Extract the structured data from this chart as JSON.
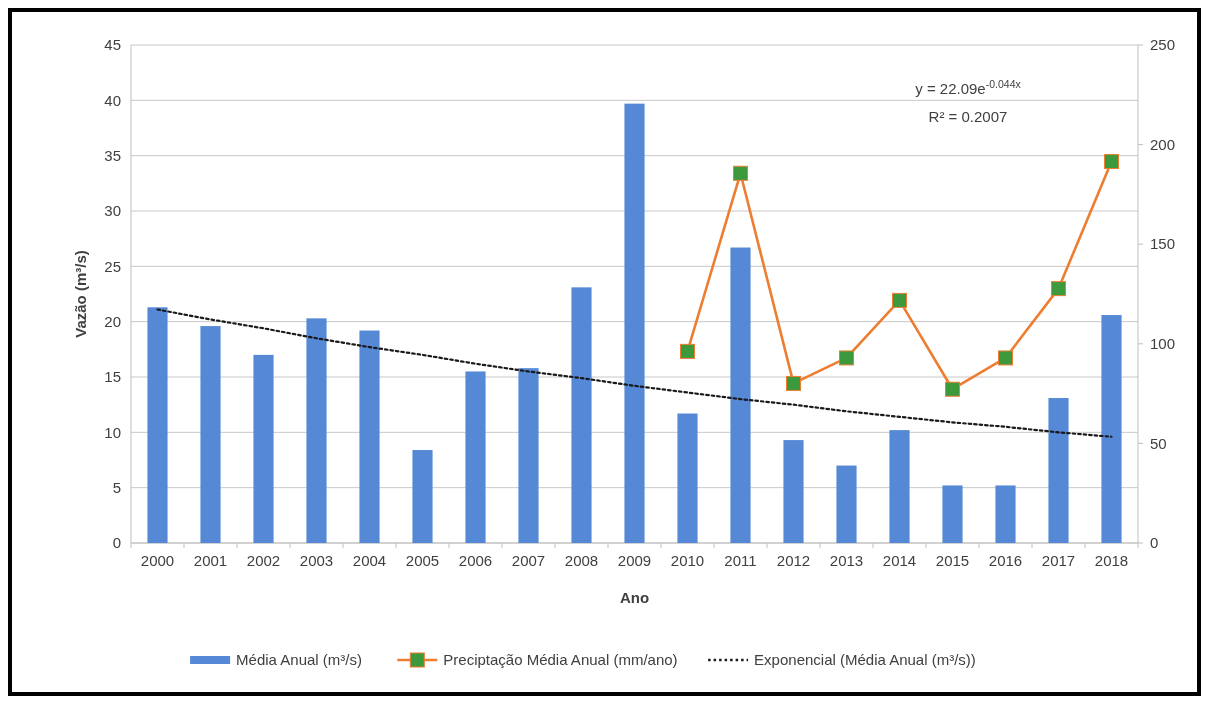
{
  "chart_data": {
    "type": "bar",
    "xlabel": "Ano",
    "ylabel": "Vazão (m³/s)",
    "categories": [
      "2000",
      "2001",
      "2002",
      "2003",
      "2004",
      "2005",
      "2006",
      "2007",
      "2008",
      "2009",
      "2010",
      "2011",
      "2012",
      "2013",
      "2014",
      "2015",
      "2016",
      "2017",
      "2018"
    ],
    "ylim": [
      0,
      45
    ],
    "yticks": [
      0,
      5,
      10,
      15,
      20,
      25,
      30,
      35,
      40,
      45
    ],
    "y2lim": [
      0,
      250
    ],
    "y2ticks": [
      0,
      50,
      100,
      150,
      200,
      250
    ],
    "grid": "y",
    "legend": "bottom",
    "annotations": [
      "y = 22.09e$^{-0.044x}$",
      "R² = 0.2007"
    ],
    "series": [
      {
        "name": "Média Anual (m³/s)",
        "color": "#5589d6",
        "values": [
          21.3,
          19.6,
          17.0,
          20.3,
          19.2,
          8.4,
          15.5,
          15.8,
          23.1,
          39.7,
          11.7,
          26.7,
          9.3,
          7.0,
          10.2,
          5.2,
          5.2,
          13.1,
          20.6
        ]
      },
      {
        "name": "Preciptação Média Anual (mm/ano)",
        "type": "line",
        "axis": "y2",
        "color": "#ed7d31",
        "marker": "square",
        "line_style": "solid",
        "values": [
          null,
          null,
          null,
          null,
          null,
          null,
          null,
          null,
          null,
          null,
          96.2,
          185.6,
          80.1,
          92.9,
          121.8,
          77.2,
          92.9,
          127.7,
          191.5
        ]
      },
      {
        "name": "Exponencial (Média Anual (m³/s))",
        "type": "line",
        "color": "#1a1a1a",
        "marker": "none",
        "line_style": "dotted",
        "values": [
          21.1,
          20.2,
          19.4,
          18.5,
          17.7,
          17.0,
          16.2,
          15.5,
          14.9,
          14.2,
          13.6,
          13.0,
          12.5,
          11.9,
          11.4,
          10.9,
          10.5,
          10.0,
          9.6
        ]
      }
    ]
  }
}
